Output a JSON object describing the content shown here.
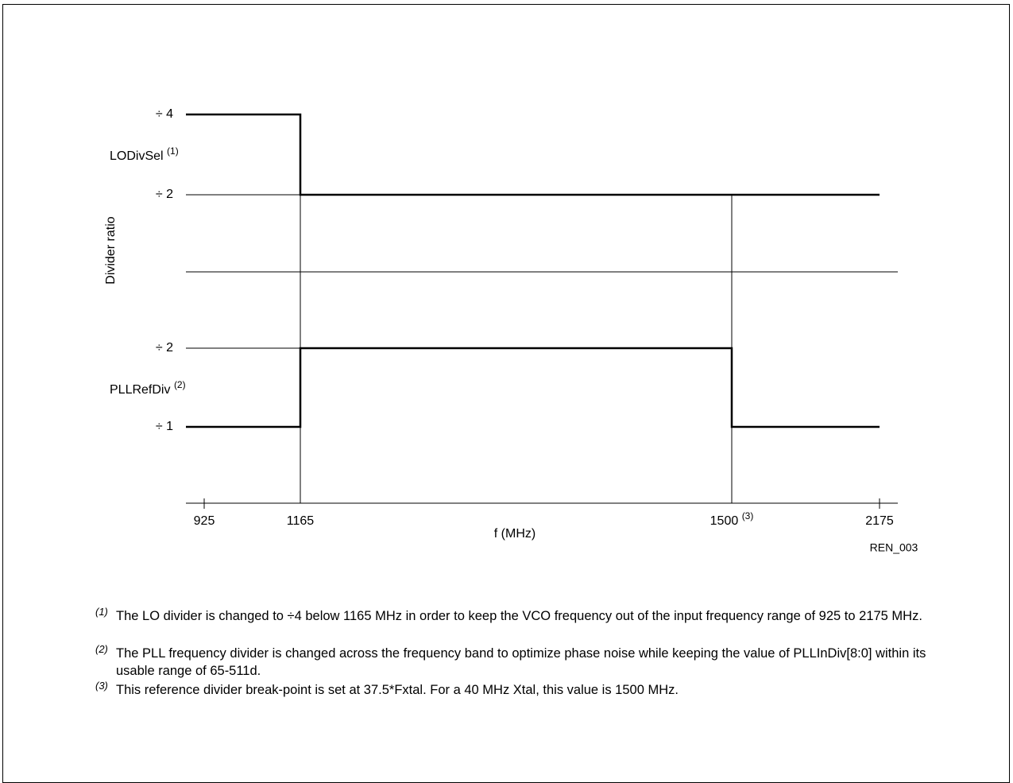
{
  "figure": {
    "y_axis_label": "Divider ratio",
    "x_axis_label": "f (MHz)",
    "code": "REN_003",
    "x_ticks": [
      {
        "label": "925"
      },
      {
        "label": "1165"
      },
      {
        "label": "1500",
        "note": "(3)"
      },
      {
        "label": "2175"
      }
    ],
    "panels": [
      {
        "name": "LODivSel",
        "note": "(1)",
        "levels": [
          "÷ 4",
          "÷ 2"
        ]
      },
      {
        "name": "PLLRefDiv",
        "note": "(2)",
        "levels": [
          "÷ 2",
          "÷ 1"
        ]
      }
    ]
  },
  "notes": [
    {
      "marker": "(1)",
      "text": "The LO divider is changed to ÷4 below 1165 MHz in order to keep the VCO frequency out of the input frequency range of 925 to 2175 MHz."
    },
    {
      "marker": "(2)",
      "text": "The PLL frequency divider is changed across the frequency band to optimize phase noise while keeping the value of PLLInDiv[8:0] within its usable range of 65-511d."
    },
    {
      "marker": "(3)",
      "text": "This reference divider break-point is set at 37.5*Fxtal. For a 40 MHz Xtal, this value is 1500 MHz."
    }
  ]
}
